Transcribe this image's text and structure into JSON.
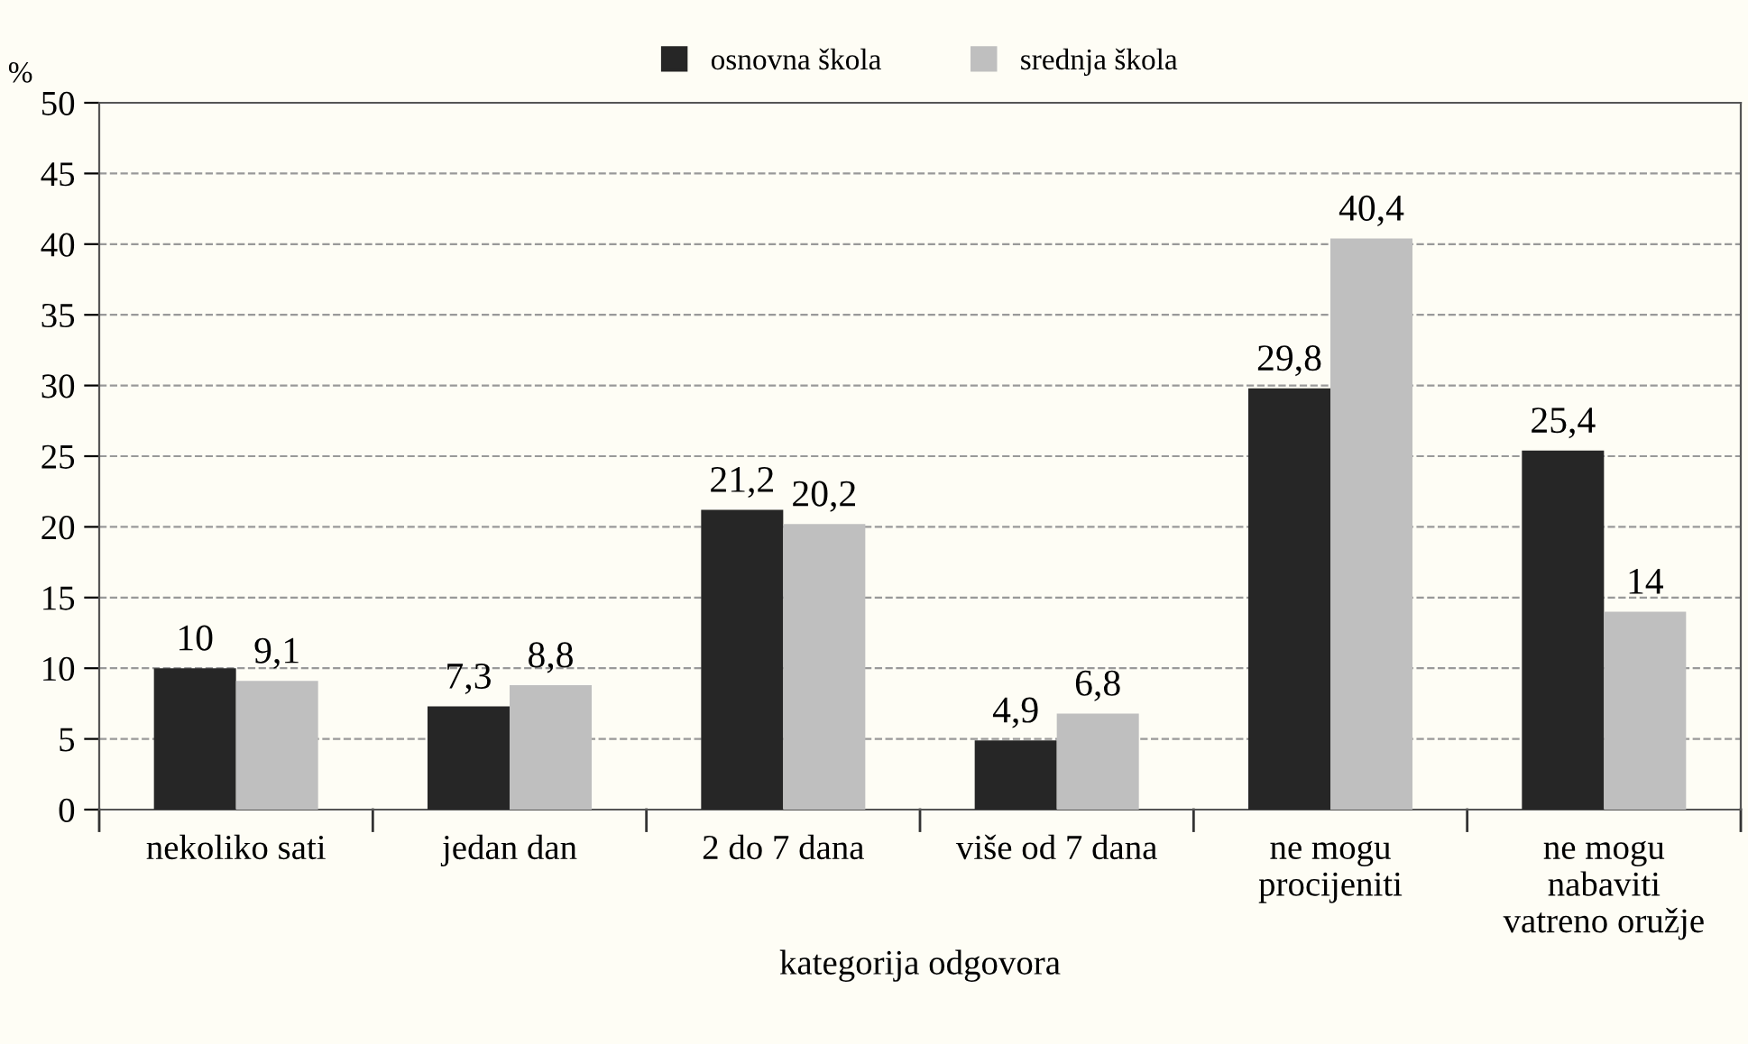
{
  "chart_data": {
    "type": "bar",
    "xlabel": "kategorija odgovora",
    "ylabel": "%",
    "categories": [
      "nekoliko sati",
      "jedan dan",
      "2 do 7 dana",
      "više od 7 dana",
      "ne mogu\nprocijeniti",
      "ne mogu\nnabaviti\nvatreno oružje"
    ],
    "series": [
      {
        "name": "osnovna škola",
        "color": "#262626",
        "values": [
          10,
          7.3,
          21.2,
          4.9,
          29.8,
          25.4
        ]
      },
      {
        "name": "srednja škola",
        "color": "#bfbfbf",
        "values": [
          9.1,
          8.8,
          20.2,
          6.8,
          40.4,
          14
        ]
      }
    ],
    "value_labels": [
      [
        "10",
        "7,3",
        "21,2",
        "4,9",
        "29,8",
        "25,4"
      ],
      [
        "9,1",
        "8,8",
        "20,2",
        "6,8",
        "40,4",
        "14"
      ]
    ],
    "ylim": [
      0,
      50
    ],
    "yticks": [
      0,
      5,
      10,
      15,
      20,
      25,
      30,
      35,
      40,
      45,
      50
    ],
    "grid": "y",
    "legend": "top"
  }
}
